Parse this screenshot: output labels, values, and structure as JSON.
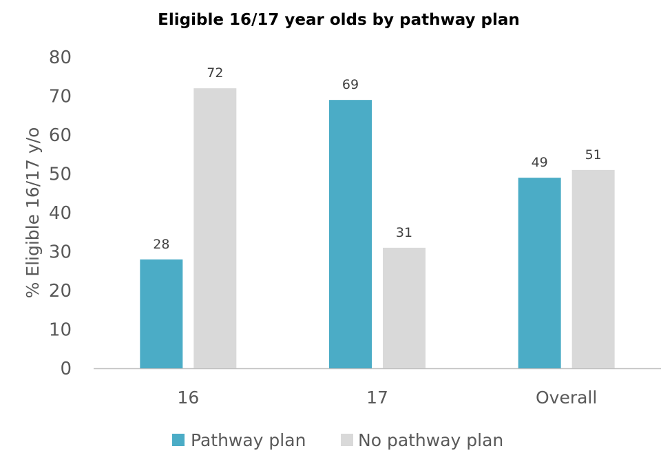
{
  "chart_data": {
    "type": "bar",
    "title": "Eligible 16/17 year olds by pathway plan",
    "xlabel": "",
    "ylabel": "% Eligible 16/17 y/o",
    "ylim": [
      0,
      80
    ],
    "yticks": [
      0,
      10,
      20,
      30,
      40,
      50,
      60,
      70,
      80
    ],
    "categories": [
      "16",
      "17",
      "Overall"
    ],
    "series": [
      {
        "name": "Pathway plan",
        "values": [
          28,
          69,
          49
        ],
        "color": "#4BACC6"
      },
      {
        "name": "No pathway plan",
        "values": [
          72,
          31,
          51
        ],
        "color": "#D9D9D9"
      }
    ],
    "data_labels": true,
    "grid": false,
    "legend": "bottom"
  }
}
